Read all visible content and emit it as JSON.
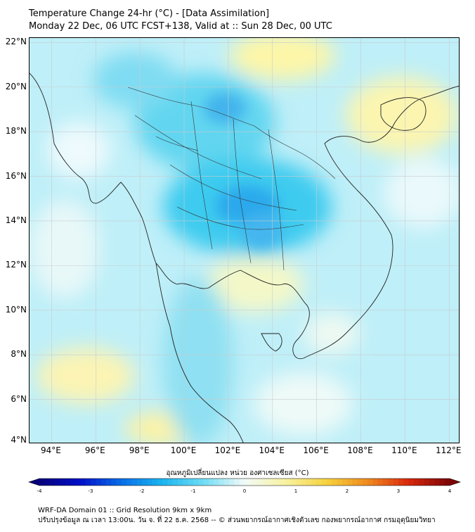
{
  "header": {
    "title_line1": "Temperature Change 24-hr (°C) - [Data Assimilation]",
    "title_line2": "Monday 22 Dec, 06 UTC FCST+138, Valid at :: Sun 28 Dec, 00 UTC"
  },
  "map": {
    "lon_min": 93,
    "lon_max": 112.5,
    "lat_min": 4,
    "lat_max": 22.2,
    "lat_labels": [
      "22°N",
      "20°N",
      "18°N",
      "16°N",
      "14°N",
      "12°N",
      "10°N",
      "8°N",
      "6°N",
      "4°N"
    ],
    "lat_values": [
      22,
      20,
      18,
      16,
      14,
      12,
      10,
      8,
      6,
      4
    ],
    "lon_labels": [
      "94°E",
      "96°E",
      "98°E",
      "100°E",
      "102°E",
      "104°E",
      "106°E",
      "108°E",
      "110°E",
      "112°E"
    ],
    "lon_values": [
      94,
      96,
      98,
      100,
      102,
      104,
      106,
      108,
      110,
      112
    ],
    "gridlines": true
  },
  "colorbar": {
    "title": "อุณหภูมิเปลี่ยนแปลง หน่วย องศาเซลเซียส (°C)",
    "min": -4,
    "max": 4,
    "ticks": [
      "-4",
      "-3",
      "-2",
      "-1",
      "0",
      "1",
      "2",
      "3",
      "4"
    ],
    "tick_values": [
      -4,
      -3,
      -2,
      -1,
      0,
      1,
      2,
      3,
      4
    ]
  },
  "footer": {
    "line1": "WRF-DA Domain 01 :: Grid Resolution 9km x 9km",
    "line2": "ปรับปรุงข้อมูล ณ เวลา 13:00น. วัน จ. ที่ 22 ธ.ค. 2568 -- © ส่วนพยากรณ์อากาศเชิงตัวเลข กองพยากรณ์อากาศ กรมอุตุนิยมวิทยา"
  }
}
